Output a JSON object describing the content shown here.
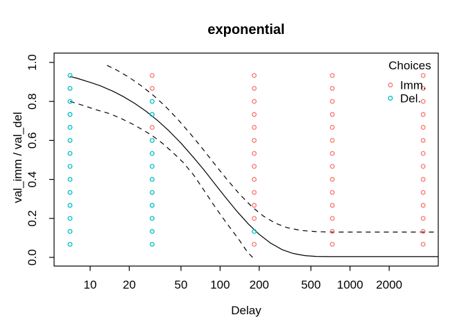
{
  "title": "exponential",
  "x_axis": {
    "label": "Delay",
    "tick_labels": [
      "10",
      "20",
      "50",
      "100",
      "200",
      "500",
      "1000",
      "2000"
    ]
  },
  "y_axis": {
    "label": "val_imm / val_del",
    "tick_labels": [
      "0.0",
      "0.2",
      "0.4",
      "0.6",
      "0.8",
      "1.0"
    ]
  },
  "legend": {
    "title": "Choices",
    "items": [
      {
        "label": "Imm.",
        "color": "#F8766D"
      },
      {
        "label": "Del.",
        "color": "#00BFC4"
      }
    ]
  },
  "colors": {
    "imm": "#F8766D",
    "del": "#00BFC4",
    "axis": "#000000",
    "background": "#FFFFFF"
  },
  "chart_data": {
    "type": "scatter",
    "title": "exponential",
    "xlabel": "Delay",
    "ylabel": "val_imm / val_del",
    "x_scale": "log10",
    "x_ticks": [
      10,
      20,
      50,
      100,
      200,
      500,
      1000,
      2000
    ],
    "y_ticks": [
      0.0,
      0.2,
      0.4,
      0.6,
      0.8,
      1.0
    ],
    "ylim": [
      0,
      1
    ],
    "xlim": [
      5.3,
      4800
    ],
    "grid": false,
    "legend_position": "top-right",
    "marker": "open-circle",
    "delays": [
      7,
      30,
      183,
      730,
      3650
    ],
    "ratio_levels_top_to_bottom": [
      0.933,
      0.867,
      0.8,
      0.733,
      0.667,
      0.6,
      0.533,
      0.467,
      0.4,
      0.333,
      0.267,
      0.2,
      0.133,
      0.067
    ],
    "columns": [
      {
        "delay": 7,
        "choices_top_to_bottom": [
          "Del",
          "Del",
          "Del",
          "Del",
          "Del",
          "Del",
          "Del",
          "Del",
          "Del",
          "Del",
          "Del",
          "Del",
          "Del",
          "Del"
        ]
      },
      {
        "delay": 30,
        "choices_top_to_bottom": [
          "Imm",
          "Imm",
          "Del",
          "Del",
          "Imm",
          "Del",
          "Del",
          "Del",
          "Del",
          "Del",
          "Del",
          "Del",
          "Del",
          "Del"
        ]
      },
      {
        "delay": 183,
        "choices_top_to_bottom": [
          "Imm",
          "Imm",
          "Imm",
          "Imm",
          "Imm",
          "Imm",
          "Imm",
          "Imm",
          "Imm",
          "Imm",
          "Imm",
          "Imm",
          "Del",
          "Imm"
        ]
      },
      {
        "delay": 730,
        "choices_top_to_bottom": [
          "Imm",
          "Imm",
          "Imm",
          "Imm",
          "Imm",
          "Imm",
          "Imm",
          "Imm",
          "Imm",
          "Imm",
          "Imm",
          "Imm",
          "Imm",
          "Imm"
        ]
      },
      {
        "delay": 3650,
        "choices_top_to_bottom": [
          "Imm",
          "Imm",
          "Imm",
          "Imm",
          "Imm",
          "Imm",
          "Imm",
          "Imm",
          "Imm",
          "Imm",
          "Imm",
          "Imm",
          "Imm",
          "Imm"
        ]
      }
    ],
    "curves": {
      "fit_solid": {
        "style": "solid",
        "points": [
          [
            7,
            0.928
          ],
          [
            8,
            0.918
          ],
          [
            10,
            0.898
          ],
          [
            12,
            0.88
          ],
          [
            15,
            0.852
          ],
          [
            18,
            0.825
          ],
          [
            22,
            0.79
          ],
          [
            27,
            0.749
          ],
          [
            33,
            0.702
          ],
          [
            40,
            0.652
          ],
          [
            50,
            0.586
          ],
          [
            62,
            0.515
          ],
          [
            75,
            0.449
          ],
          [
            90,
            0.382
          ],
          [
            110,
            0.308
          ],
          [
            135,
            0.236
          ],
          [
            165,
            0.171
          ],
          [
            200,
            0.118
          ],
          [
            245,
            0.073
          ],
          [
            300,
            0.04
          ],
          [
            365,
            0.02
          ],
          [
            450,
            0.009
          ],
          [
            550,
            0.005
          ],
          [
            700,
            0.004
          ],
          [
            1000,
            0.004
          ],
          [
            2000,
            0.004
          ],
          [
            4800,
            0.004
          ]
        ]
      },
      "ci_upper_dashed": {
        "style": "dashed",
        "points": [
          [
            13.5,
            0.985
          ],
          [
            16,
            0.961
          ],
          [
            20,
            0.923
          ],
          [
            25,
            0.878
          ],
          [
            31,
            0.828
          ],
          [
            38,
            0.774
          ],
          [
            47,
            0.71
          ],
          [
            58,
            0.64
          ],
          [
            72,
            0.564
          ],
          [
            90,
            0.482
          ],
          [
            112,
            0.403
          ],
          [
            140,
            0.327
          ],
          [
            175,
            0.261
          ],
          [
            215,
            0.212
          ],
          [
            265,
            0.176
          ],
          [
            330,
            0.152
          ],
          [
            420,
            0.138
          ],
          [
            550,
            0.132
          ],
          [
            730,
            0.13
          ],
          [
            1200,
            0.13
          ],
          [
            2000,
            0.13
          ],
          [
            3650,
            0.13
          ],
          [
            4800,
            0.13
          ]
        ]
      },
      "ci_lower_dashed": {
        "style": "dashed",
        "points": [
          [
            7,
            0.8
          ],
          [
            9,
            0.778
          ],
          [
            11,
            0.758
          ],
          [
            14,
            0.738
          ],
          [
            17,
            0.715
          ],
          [
            21,
            0.685
          ],
          [
            26,
            0.65
          ],
          [
            30,
            0.625
          ],
          [
            36,
            0.585
          ],
          [
            43,
            0.54
          ],
          [
            52,
            0.487
          ],
          [
            63,
            0.42
          ],
          [
            75,
            0.345
          ],
          [
            88,
            0.275
          ],
          [
            103,
            0.21
          ],
          [
            120,
            0.15
          ],
          [
            140,
            0.09
          ],
          [
            162,
            0.028
          ],
          [
            185,
            -0.012
          ]
        ]
      }
    }
  }
}
